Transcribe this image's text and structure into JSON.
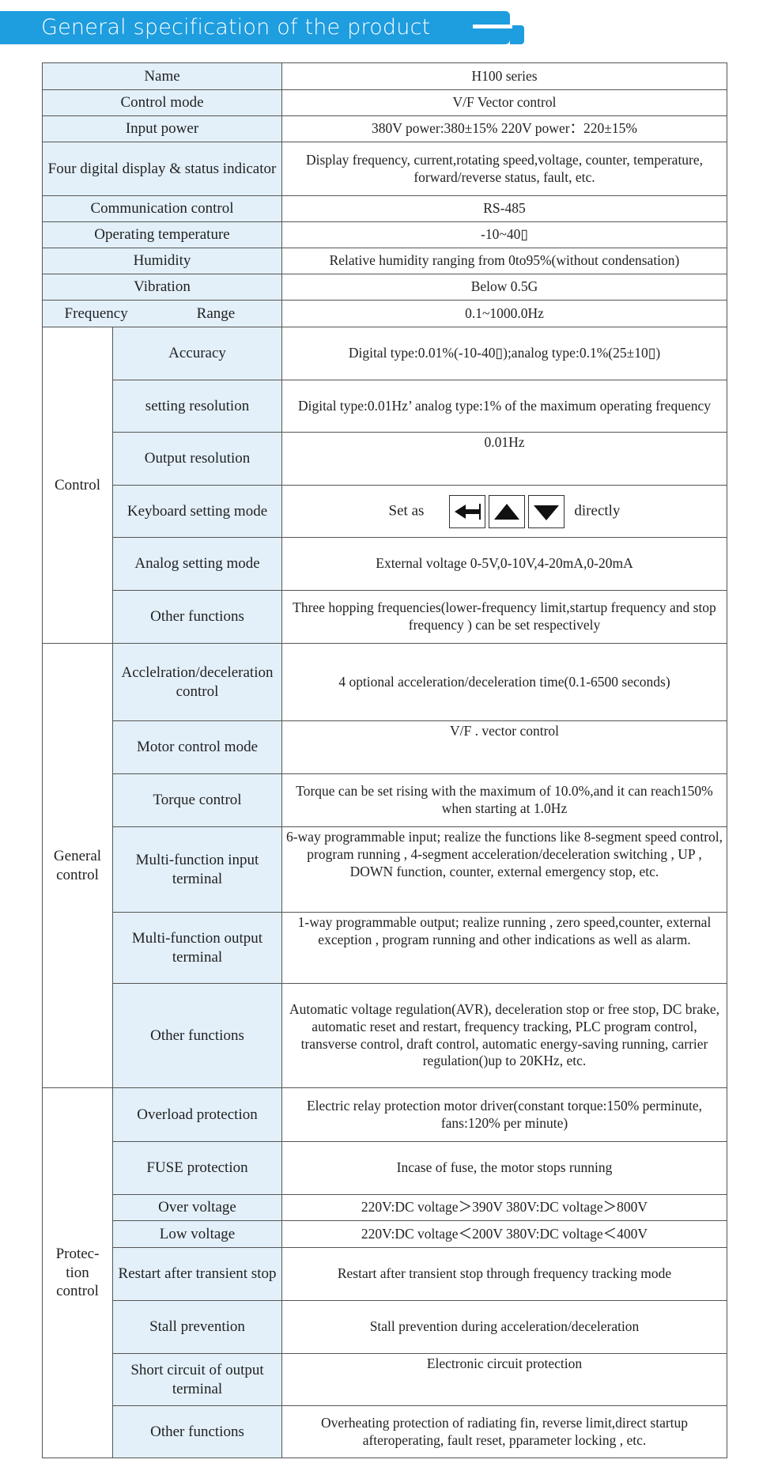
{
  "header": {
    "title": "General specification of the product"
  },
  "colors": {
    "header_bg": "#1e9ddf",
    "key_bg": "#e3f0fa"
  },
  "rows": [
    {
      "k": "Name",
      "v": "H100 series"
    },
    {
      "k": "Control mode",
      "v": "V/F    Vector control"
    },
    {
      "k": "Input power",
      "v": "380V power:380±15%  220V power：220±15%"
    },
    {
      "k": "Four digital display & status indicator",
      "v": "Display frequency, current,rotating speed,voltage, counter, temperature, forward/reverse status, fault, etc."
    },
    {
      "k": "Communication control",
      "v": "RS-485"
    },
    {
      "k": "Operating temperature",
      "v": "-10~40▯"
    },
    {
      "k": "Humidity",
      "v": "Relative humidity ranging from 0to95%(without condensation)"
    },
    {
      "k": "Vibration",
      "v": "Below 0.5G"
    },
    {
      "k1": "Frequency",
      "k2": "Range",
      "v": "0.1~1000.0Hz"
    }
  ],
  "control": {
    "group": "Control",
    "items": [
      {
        "k": "Accuracy",
        "v": "Digital type:0.01%(-10-40▯);analog type:0.1%(25±10▯)"
      },
      {
        "k": "setting resolution",
        "v": "Digital type:0.01Hz’  analog type:1% of the maximum operating frequency"
      },
      {
        "k": "Output resolution",
        "v": "0.01Hz"
      },
      {
        "k": "Keyboard setting mode",
        "v_pre": "Set as",
        "v_post": "directly",
        "icons": [
          "left-arrow-icon",
          "up-arrow-icon",
          "down-arrow-icon"
        ]
      },
      {
        "k": "Analog setting mode",
        "v": "External voltage 0-5V,0-10V,4-20mA,0-20mA"
      },
      {
        "k": "Other functions",
        "v": "Three hopping frequencies(lower-frequency limit,startup frequency and stop frequency ) can be set respectively"
      }
    ]
  },
  "general": {
    "group": "General control",
    "items": [
      {
        "k": "Acclelration/deceleration control",
        "v": "4 optional acceleration/deceleration time(0.1-6500 seconds)"
      },
      {
        "k": "Motor control mode",
        "v": "V/F . vector control"
      },
      {
        "k": "Torque control",
        "v": "Torque can be set rising with the maximum of 10.0%,and it can reach150%  when starting at 1.0Hz"
      },
      {
        "k": "Multi-function input terminal",
        "v": "6-way programmable input; realize the functions like 8-segment speed control, program running , 4-segment acceleration/deceleration switching , UP , DOWN function, counter, external emergency stop, etc."
      },
      {
        "k": "Multi-function output terminal",
        "v": "1-way programmable output; realize running , zero speed,counter, external exception , program running and other indications as well as alarm."
      },
      {
        "k": "Other functions",
        "v": "Automatic voltage regulation(AVR), deceleration stop or free stop, DC brake, automatic reset and restart, frequency tracking, PLC program control, transverse control, draft control, automatic energy-saving running, carrier regulation()up to 20KHz, etc."
      }
    ]
  },
  "protection": {
    "group": "Protec-tion control",
    "items": [
      {
        "k": "Overload protection",
        "v": "Electric relay protection motor driver(constant torque:150% perminute, fans:120% per minute)"
      },
      {
        "k": "FUSE protection",
        "v": "Incase of fuse, the motor stops running"
      },
      {
        "k": "Over voltage",
        "v": "220V:DC voltage＞390V    380V:DC voltage＞800V"
      },
      {
        "k": "Low voltage",
        "v": "220V:DC voltage＜200V    380V:DC voltage＜400V"
      },
      {
        "k": "Restart after transient stop",
        "v": "Restart after transient stop through frequency tracking mode"
      },
      {
        "k": "Stall prevention",
        "v": "Stall prevention during acceleration/deceleration"
      },
      {
        "k": "Short circuit of output terminal",
        "v": "Electronic circuit protection"
      },
      {
        "k": "Other functions",
        "v": "Overheating protection of radiating fin, reverse limit,direct startup afteroperating, fault reset, pparameter locking , etc."
      }
    ]
  }
}
